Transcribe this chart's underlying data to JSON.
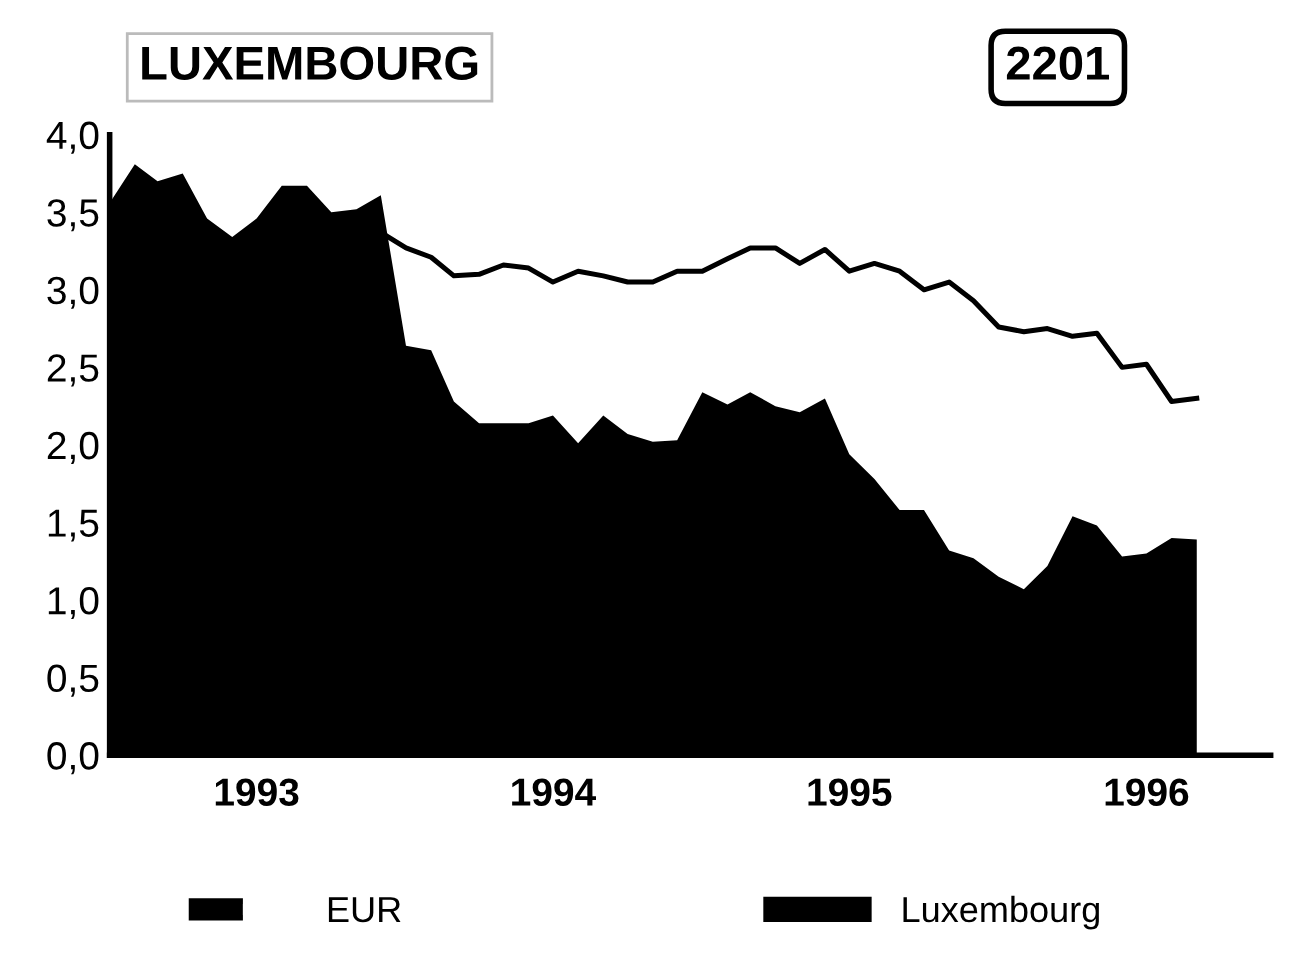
{
  "chart_data": {
    "type": "area",
    "title": "LUXEMBOURG",
    "annotations": [
      "2201"
    ],
    "x": [
      "1993-01",
      "1993-02",
      "1993-03",
      "1993-04",
      "1993-05",
      "1993-06",
      "1993-07",
      "1993-08",
      "1993-09",
      "1993-10",
      "1993-11",
      "1993-12",
      "1994-01",
      "1994-02",
      "1994-03",
      "1994-04",
      "1994-05",
      "1994-06",
      "1994-07",
      "1994-08",
      "1994-09",
      "1994-10",
      "1994-11",
      "1994-12",
      "1995-01",
      "1995-02",
      "1995-03",
      "1995-04",
      "1995-05",
      "1995-06",
      "1995-07",
      "1995-08",
      "1995-09",
      "1995-10",
      "1995-11",
      "1995-12",
      "1996-01",
      "1996-02",
      "1996-03",
      "1996-04",
      "1996-05",
      "1996-06",
      "1996-07",
      "1996-08",
      "1996-09"
    ],
    "series": [
      {
        "name": "Luxembourg",
        "color": "#000000",
        "values": [
          3.56,
          3.81,
          3.7,
          3.75,
          3.46,
          3.34,
          3.46,
          3.67,
          3.67,
          3.5,
          3.52,
          3.61,
          2.64,
          2.61,
          2.28,
          2.14,
          2.14,
          2.14,
          2.19,
          2.01,
          2.19,
          2.07,
          2.02,
          2.03,
          2.34,
          2.26,
          2.34,
          2.25,
          2.21,
          2.3,
          1.94,
          1.78,
          1.58,
          1.58,
          1.32,
          1.27,
          1.15,
          1.07,
          1.22,
          1.54,
          1.48,
          1.28,
          1.3,
          1.4,
          1.39
        ]
      },
      {
        "name": "EUR",
        "type": "line",
        "color": "#000000",
        "values": [
          null,
          null,
          null,
          null,
          null,
          null,
          null,
          null,
          null,
          null,
          null,
          3.37,
          3.27,
          3.21,
          3.09,
          3.1,
          3.16,
          3.14,
          3.05,
          3.12,
          3.09,
          3.05,
          3.05,
          3.12,
          3.12,
          3.2,
          3.27,
          3.27,
          3.17,
          3.26,
          3.12,
          3.17,
          3.12,
          3.0,
          3.05,
          2.93,
          2.76,
          2.73,
          2.75,
          2.7,
          2.72,
          2.5,
          2.52,
          2.28,
          2.3
        ]
      }
    ],
    "xlim": [
      "1993-01",
      "1996-12"
    ],
    "xticks": [
      {
        "value": "1993-07",
        "label": "1993"
      },
      {
        "value": "1994-01",
        "label": null
      },
      {
        "value": "1994-07",
        "label": "1994"
      },
      {
        "value": "1995-01",
        "label": null
      },
      {
        "value": "1995-07",
        "label": "1995"
      },
      {
        "value": "1996-01",
        "label": null
      },
      {
        "value": "1996-07",
        "label": "1996"
      }
    ],
    "ylim": [
      0,
      4
    ],
    "yticks": [
      {
        "value": 0,
        "label": "0,0"
      },
      {
        "value": 0.5,
        "label": "0,5"
      },
      {
        "value": 1,
        "label": "1,0"
      },
      {
        "value": 1.5,
        "label": "1,5"
      },
      {
        "value": 2,
        "label": "2,0"
      },
      {
        "value": 2.5,
        "label": "2,5"
      },
      {
        "value": 3,
        "label": "3,0"
      },
      {
        "value": 3.5,
        "label": "3,5"
      },
      {
        "value": 4,
        "label": "4,0"
      }
    ],
    "legend": "bottom",
    "grid": false
  }
}
